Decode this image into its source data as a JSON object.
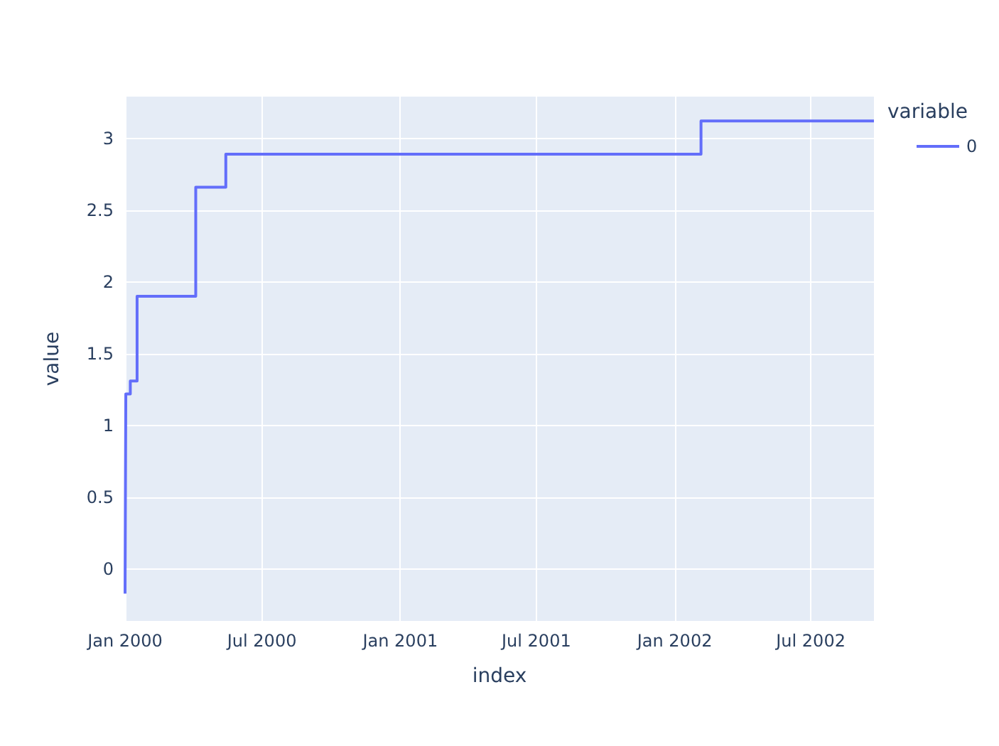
{
  "chart_data": {
    "type": "step",
    "xlabel": "index",
    "ylabel": "value",
    "legend_title": "variable",
    "legend": "top right",
    "grid": true,
    "x": [
      "2000-01-01",
      "2000-01-02",
      "2000-01-08",
      "2000-01-17",
      "2000-04-04",
      "2000-05-14",
      "2002-02-05",
      "2002-09-23"
    ],
    "series": [
      {
        "name": "0",
        "color": "#636efa",
        "values": [
          -0.17,
          1.22,
          1.31,
          1.9,
          2.66,
          2.89,
          3.12,
          3.12
        ]
      }
    ],
    "xlim": [
      "2000-01-01",
      "2002-09-23"
    ],
    "xticks": [
      {
        "value": "2000-01-01",
        "label": "Jan 2000"
      },
      {
        "value": "2000-07-01",
        "label": "Jul 2000"
      },
      {
        "value": "2001-01-01",
        "label": "Jan 2001"
      },
      {
        "value": "2001-07-01",
        "label": "Jul 2001"
      },
      {
        "value": "2002-01-01",
        "label": "Jan 2002"
      },
      {
        "value": "2002-07-01",
        "label": "Jul 2002"
      }
    ],
    "ylim": [
      -0.36,
      3.29
    ],
    "yticks": [
      0,
      0.5,
      1,
      1.5,
      2,
      2.5,
      3
    ]
  }
}
